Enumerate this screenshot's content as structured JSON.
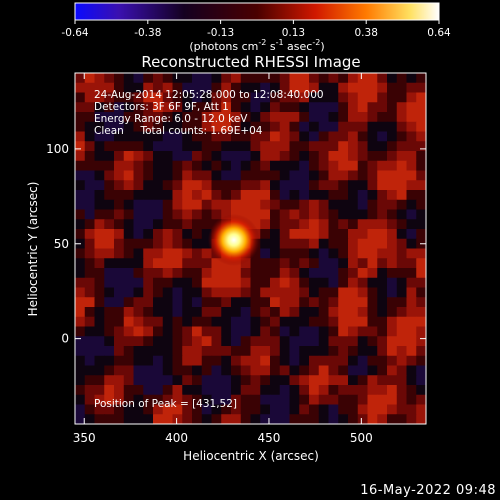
{
  "colorbar": {
    "ticks": [
      "-0.64",
      "-0.38",
      "-0.13",
      "0.13",
      "0.38",
      "0.64"
    ],
    "units_prefix": "(photons cm",
    "units_exp1": "-2",
    "units_mid": " s",
    "units_exp2": "-1",
    "units_mid2": " asec",
    "units_exp3": "-2",
    "units_suffix": ")",
    "colors": [
      "#1010ff",
      "#000000",
      "#6a0000",
      "#ff2a00",
      "#ffcc00",
      "#ffffff"
    ]
  },
  "chart_data": {
    "type": "heatmap",
    "title": "Reconstructed RHESSI Image",
    "xlabel": "Heliocentric X (arcsec)",
    "ylabel": "Heliocentric Y (arcsec)",
    "xlim": [
      345,
      535
    ],
    "ylim": [
      -45,
      140
    ],
    "xticks": [
      "350",
      "400",
      "450",
      "500"
    ],
    "yticks": [
      "0",
      "50",
      "100"
    ],
    "xtick_values": [
      350,
      400,
      450,
      500
    ],
    "ytick_values": [
      0,
      50,
      100
    ],
    "value_range": [
      -0.64,
      0.64
    ],
    "source": {
      "x": 431,
      "y": 52,
      "peak": 0.64
    },
    "annotations": [
      "24-Aug-2014 12:05:28.000 to 12:08:40.000",
      "Detectors: 3F 6F 9F, Att 1",
      "Energy Range: 6.0 - 12.0 keV",
      "Clean     Total counts: 1.69E+04"
    ],
    "peak_label": "Position of Peak = [431,52]"
  },
  "footer": {
    "date": "16-May-2022 09:48"
  }
}
